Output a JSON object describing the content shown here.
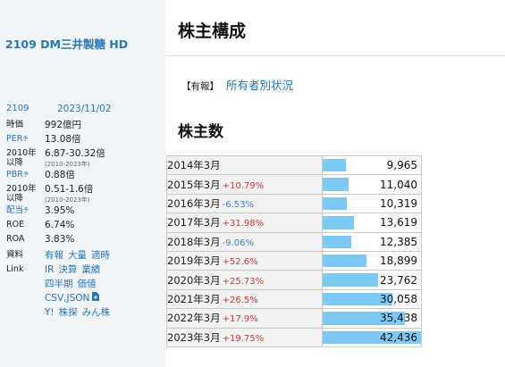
{
  "company": {
    "title": "2109 DM三井製糖 HD",
    "code": "2109",
    "date": "2023/11/02"
  },
  "metrics": [
    {
      "label": "時価",
      "label_blue": false,
      "value": "992億円",
      "note": ""
    },
    {
      "label": "PER",
      "label_blue": true,
      "value": "13.08倍",
      "note": ""
    },
    {
      "label": "2010年以降",
      "label_blue": false,
      "value": "6.87-30.32倍",
      "note": "(2010-2023年)"
    },
    {
      "label": "PBR",
      "label_blue": true,
      "value": "0.88倍",
      "note": ""
    },
    {
      "label": "2010年以降",
      "label_blue": false,
      "value": "0.51-1.6倍",
      "note": "(2010-2023年)"
    },
    {
      "label": "配当",
      "label_blue": true,
      "value": "3.95%",
      "note": ""
    },
    {
      "label": "ROE",
      "label_blue": false,
      "value": "6.74%",
      "note": ""
    },
    {
      "label": "ROA",
      "label_blue": false,
      "value": "3.83%",
      "note": ""
    }
  ],
  "sup_mark": "予",
  "links": {
    "shiryo_label": "資料",
    "shiryo_items": [
      "有報",
      "大量",
      "適時"
    ],
    "link_label": "Link",
    "row1": [
      "IR",
      "決算",
      "業績"
    ],
    "row2": [
      "四半期",
      "価値"
    ],
    "row3": [
      "CSV,JSON"
    ],
    "row4": [
      "Y!",
      "株探",
      "みん株"
    ]
  },
  "main": {
    "title": "株主構成",
    "doc_tag": "【有報】",
    "doc_link": "所有者別状況",
    "section_title": "株主数"
  },
  "shareholders": [
    {
      "year": "2014年3月",
      "change": "",
      "dir": "",
      "count": 9965,
      "count_text": "9,965"
    },
    {
      "year": "2015年3月",
      "change": "+10.79%",
      "dir": "up",
      "count": 11040,
      "count_text": "11,040"
    },
    {
      "year": "2016年3月",
      "change": "-6.53%",
      "dir": "down",
      "count": 10319,
      "count_text": "10,319"
    },
    {
      "year": "2017年3月",
      "change": "+31.98%",
      "dir": "up",
      "count": 13619,
      "count_text": "13,619"
    },
    {
      "year": "2018年3月",
      "change": "-9.06%",
      "dir": "down",
      "count": 12385,
      "count_text": "12,385"
    },
    {
      "year": "2019年3月",
      "change": "+52.6%",
      "dir": "up",
      "count": 18899,
      "count_text": "18,899"
    },
    {
      "year": "2020年3月",
      "change": "+25.73%",
      "dir": "up",
      "count": 23762,
      "count_text": "23,762"
    },
    {
      "year": "2021年3月",
      "change": "+26.5%",
      "dir": "up",
      "count": 30058,
      "count_text": "30,058"
    },
    {
      "year": "2022年3月",
      "change": "+17.9%",
      "dir": "up",
      "count": 35438,
      "count_text": "35,438"
    },
    {
      "year": "2023年3月",
      "change": "+19.75%",
      "dir": "up",
      "count": 42436,
      "count_text": "42,436"
    }
  ],
  "colors": {
    "bar": "#7ccaf5",
    "up": "#d13b3b",
    "down": "#3d87d4",
    "link": "#2a78b8"
  }
}
